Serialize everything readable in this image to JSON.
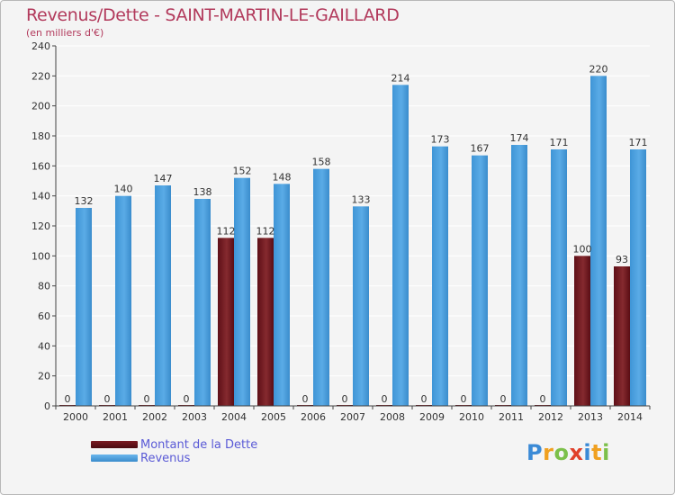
{
  "title": "Revenus/Dette - SAINT-MARTIN-LE-GAILLARD",
  "subtitle": "(en milliers d'€)",
  "colors": {
    "dette": "#7a1a22",
    "revenus": "#4fa3e0",
    "title": "#b23a5c",
    "legend_text": "#5a5ad6"
  },
  "chart_data": {
    "type": "bar",
    "title": "Revenus/Dette - SAINT-MARTIN-LE-GAILLARD",
    "subtitle": "(en milliers d'€)",
    "xlabel": "",
    "ylabel": "",
    "ylim": [
      0,
      240
    ],
    "yticks": [
      0,
      20,
      40,
      60,
      80,
      100,
      120,
      140,
      160,
      180,
      200,
      220,
      240
    ],
    "grid": true,
    "legend_position": "bottom-left",
    "categories": [
      "2000",
      "2001",
      "2002",
      "2003",
      "2004",
      "2005",
      "2006",
      "2007",
      "2008",
      "2009",
      "2010",
      "2011",
      "2012",
      "2013",
      "2014"
    ],
    "series": [
      {
        "name": "Montant de la Dette",
        "values": [
          0,
          0,
          0,
          0,
          112,
          112,
          0,
          0,
          0,
          0,
          0,
          0,
          0,
          100,
          93
        ]
      },
      {
        "name": "Revenus",
        "values": [
          132,
          140,
          147,
          138,
          152,
          148,
          158,
          133,
          214,
          173,
          167,
          174,
          171,
          220,
          171
        ]
      }
    ]
  },
  "legend": {
    "items": [
      {
        "label": "Montant de la Dette",
        "icon": "dette-swatch"
      },
      {
        "label": "Revenus",
        "icon": "revenus-swatch"
      }
    ]
  },
  "logo": {
    "letters": [
      "P",
      "r",
      "o",
      "x",
      "i",
      "t",
      "i"
    ]
  }
}
